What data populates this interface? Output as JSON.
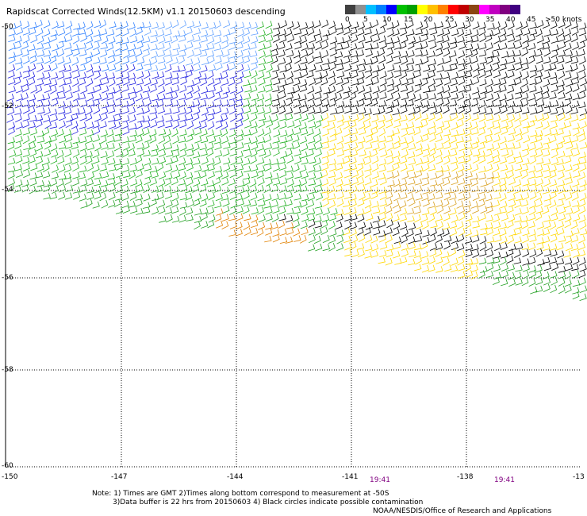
{
  "title": "Rapidscat Corrected Winds(12.5KM) v1.1 20150603 descending",
  "colorbar": {
    "colors": [
      "#404040",
      "#909090",
      "#00bfff",
      "#0080ff",
      "#0000ff",
      "#00c000",
      "#00a000",
      "#ffff00",
      "#ffc000",
      "#ff8000",
      "#ff0000",
      "#c00000",
      "#8b4513",
      "#ff00ff",
      "#c000c0",
      "#800080",
      "#400080"
    ],
    "labels": [
      "0",
      "5",
      "10",
      "15",
      "20",
      "25",
      "30",
      "35",
      "40",
      "45",
      ">50 knots"
    ]
  },
  "axes": {
    "x_ticks": [
      "-150",
      "-147",
      "-144",
      "-141",
      "-138",
      "-13"
    ],
    "y_ticks": [
      "-50",
      "-52",
      "-54",
      "-56",
      "-58",
      "-60"
    ]
  },
  "timestamps": [
    "19:41",
    "19:41"
  ],
  "notes": {
    "line1": "Note: 1) Times are GMT 2)Times along bottom correspond to measurement at -50S",
    "line2": "3)Data buffer is 22 hrs from 20150603 4) Black circles indicate possible contamination",
    "credit": "NOAA/NESDIS/Office of Research and Applications"
  }
}
